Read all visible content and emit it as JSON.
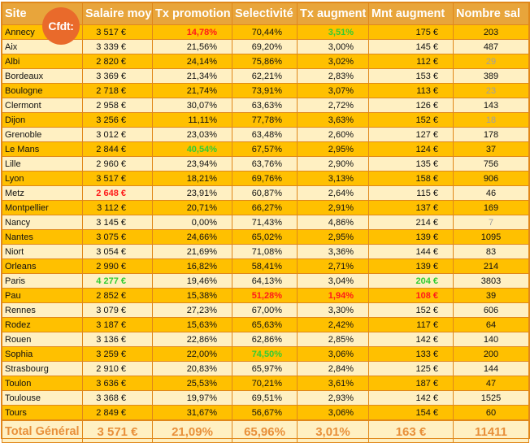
{
  "logo_text": "Cfdt:",
  "headers": [
    "Site",
    "Salaire moy",
    "Tx promotion",
    "Selectivité",
    "Tx augment",
    "Mnt augment",
    "Nombre sal"
  ],
  "rows": [
    {
      "site": "Annecy",
      "salaire": "3 517 €",
      "tx_promo": "14,78%",
      "selectivite": "70,44%",
      "tx_aug": "3,51%",
      "mnt_aug": "175 €",
      "nombre": "203"
    },
    {
      "site": "Aix",
      "salaire": "3 339 €",
      "tx_promo": "21,56%",
      "selectivite": "69,20%",
      "tx_aug": "3,00%",
      "mnt_aug": "145 €",
      "nombre": "487"
    },
    {
      "site": "Albi",
      "salaire": "2 820 €",
      "tx_promo": "24,14%",
      "selectivite": "75,86%",
      "tx_aug": "3,02%",
      "mnt_aug": "112 €",
      "nombre": "29"
    },
    {
      "site": "Bordeaux",
      "salaire": "3 369 €",
      "tx_promo": "21,34%",
      "selectivite": "62,21%",
      "tx_aug": "2,83%",
      "mnt_aug": "153 €",
      "nombre": "389"
    },
    {
      "site": "Boulogne",
      "salaire": "2 718 €",
      "tx_promo": "21,74%",
      "selectivite": "73,91%",
      "tx_aug": "3,07%",
      "mnt_aug": "113 €",
      "nombre": "23"
    },
    {
      "site": "Clermont",
      "salaire": "2 958 €",
      "tx_promo": "30,07%",
      "selectivite": "63,63%",
      "tx_aug": "2,72%",
      "mnt_aug": "126 €",
      "nombre": "143"
    },
    {
      "site": "Dijon",
      "salaire": "3 256 €",
      "tx_promo": "11,11%",
      "selectivite": "77,78%",
      "tx_aug": "3,63%",
      "mnt_aug": "152 €",
      "nombre": "18"
    },
    {
      "site": "Grenoble",
      "salaire": "3 012 €",
      "tx_promo": "23,03%",
      "selectivite": "63,48%",
      "tx_aug": "2,60%",
      "mnt_aug": "127 €",
      "nombre": "178"
    },
    {
      "site": "Le Mans",
      "salaire": "2 844 €",
      "tx_promo": "40,54%",
      "selectivite": "67,57%",
      "tx_aug": "2,95%",
      "mnt_aug": "124 €",
      "nombre": "37"
    },
    {
      "site": "Lille",
      "salaire": "2 960 €",
      "tx_promo": "23,94%",
      "selectivite": "63,76%",
      "tx_aug": "2,90%",
      "mnt_aug": "135 €",
      "nombre": "756"
    },
    {
      "site": "Lyon",
      "salaire": "3 517 €",
      "tx_promo": "18,21%",
      "selectivite": "69,76%",
      "tx_aug": "3,13%",
      "mnt_aug": "158 €",
      "nombre": "906"
    },
    {
      "site": "Metz",
      "salaire": "2 648 €",
      "tx_promo": "23,91%",
      "selectivite": "60,87%",
      "tx_aug": "2,64%",
      "mnt_aug": "115 €",
      "nombre": "46"
    },
    {
      "site": "Montpellier",
      "salaire": "3 112 €",
      "tx_promo": "20,71%",
      "selectivite": "66,27%",
      "tx_aug": "2,91%",
      "mnt_aug": "137 €",
      "nombre": "169"
    },
    {
      "site": "Nancy",
      "salaire": "3 145 €",
      "tx_promo": "0,00%",
      "selectivite": "71,43%",
      "tx_aug": "4,86%",
      "mnt_aug": "214 €",
      "nombre": "7"
    },
    {
      "site": "Nantes",
      "salaire": "3 075 €",
      "tx_promo": "24,66%",
      "selectivite": "65,02%",
      "tx_aug": "2,95%",
      "mnt_aug": "139 €",
      "nombre": "1095"
    },
    {
      "site": "Niort",
      "salaire": "3 054 €",
      "tx_promo": "21,69%",
      "selectivite": "71,08%",
      "tx_aug": "3,36%",
      "mnt_aug": "144 €",
      "nombre": "83"
    },
    {
      "site": "Orleans",
      "salaire": "2 990 €",
      "tx_promo": "16,82%",
      "selectivite": "58,41%",
      "tx_aug": "2,71%",
      "mnt_aug": "139 €",
      "nombre": "214"
    },
    {
      "site": "Paris",
      "salaire": "4 277 €",
      "tx_promo": "19,46%",
      "selectivite": "64,13%",
      "tx_aug": "3,04%",
      "mnt_aug": "204 €",
      "nombre": "3803"
    },
    {
      "site": "Pau",
      "salaire": "2 852 €",
      "tx_promo": "15,38%",
      "selectivite": "51,28%",
      "tx_aug": "1,94%",
      "mnt_aug": "108 €",
      "nombre": "39"
    },
    {
      "site": "Rennes",
      "salaire": "3 079 €",
      "tx_promo": "27,23%",
      "selectivite": "67,00%",
      "tx_aug": "3,30%",
      "mnt_aug": "152 €",
      "nombre": "606"
    },
    {
      "site": "Rodez",
      "salaire": "3 187 €",
      "tx_promo": "15,63%",
      "selectivite": "65,63%",
      "tx_aug": "2,42%",
      "mnt_aug": "117 €",
      "nombre": "64"
    },
    {
      "site": "Rouen",
      "salaire": "3 136 €",
      "tx_promo": "22,86%",
      "selectivite": "62,86%",
      "tx_aug": "2,85%",
      "mnt_aug": "142 €",
      "nombre": "140"
    },
    {
      "site": "Sophia",
      "salaire": "3 259 €",
      "tx_promo": "22,00%",
      "selectivite": "74,50%",
      "tx_aug": "3,06%",
      "mnt_aug": "133 €",
      "nombre": "200"
    },
    {
      "site": "Strasbourg",
      "salaire": "2 910 €",
      "tx_promo": "20,83%",
      "selectivite": "65,97%",
      "tx_aug": "2,84%",
      "mnt_aug": "125 €",
      "nombre": "144"
    },
    {
      "site": "Toulon",
      "salaire": "3 636 €",
      "tx_promo": "25,53%",
      "selectivite": "70,21%",
      "tx_aug": "3,61%",
      "mnt_aug": "187 €",
      "nombre": "47"
    },
    {
      "site": "Toulouse",
      "salaire": "3 368 €",
      "tx_promo": "19,97%",
      "selectivite": "69,51%",
      "tx_aug": "2,93%",
      "mnt_aug": "142 €",
      "nombre": "1525"
    },
    {
      "site": "Tours",
      "salaire": "2 849 €",
      "tx_promo": "31,67%",
      "selectivite": "56,67%",
      "tx_aug": "3,06%",
      "mnt_aug": "154 €",
      "nombre": "60"
    }
  ],
  "highlights": {
    "Annecy.tx_promo": "red",
    "Annecy.tx_aug": "green",
    "Albi.nombre": "grey",
    "Boulogne.nombre": "grey",
    "Dijon.nombre": "grey",
    "Nancy.nombre": "grey",
    "Le Mans.tx_promo": "green",
    "Metz.salaire": "red",
    "Paris.salaire": "green",
    "Paris.mnt_aug": "green",
    "Pau.selectivite": "red",
    "Pau.tx_aug": "red",
    "Pau.mnt_aug": "red",
    "Sophia.selectivite": "green"
  },
  "total": {
    "site": "Total Général",
    "salaire": "3 571 €",
    "tx_promo": "21,09%",
    "selectivite": "65,96%",
    "tx_aug": "3,01%",
    "mnt_aug": "163 €",
    "nombre": "11411"
  },
  "colors": {
    "header_bg": "#e8a53b",
    "row_dark": "#ffc000",
    "row_light": "#fff0c2",
    "border": "#e0871a",
    "highlight_red": "#ff1a1a",
    "highlight_green": "#33cc33",
    "total_text": "#e8903a",
    "logo_bg": "#e96a2b"
  }
}
